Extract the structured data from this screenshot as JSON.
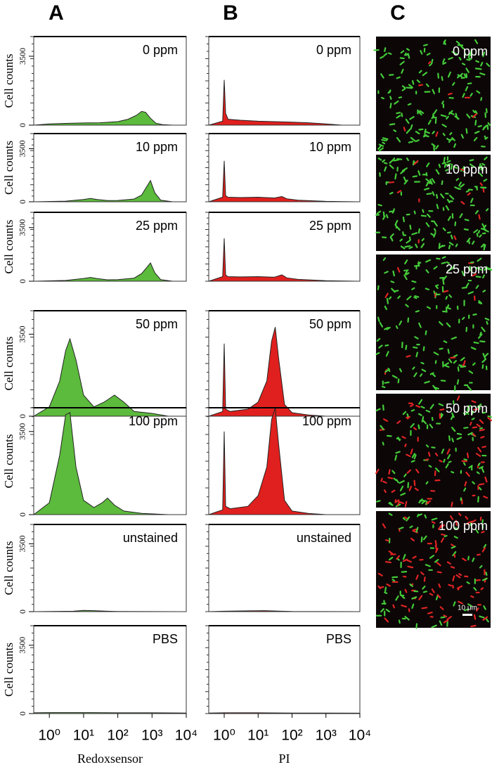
{
  "panel_labels": [
    "A",
    "B",
    "C"
  ],
  "chart_data": [
    {
      "type": "area",
      "annotation": "0 ppm",
      "ylabel": "Cell counts",
      "color": "#5cba3c",
      "xscale": "log",
      "xlim": [
        0.35,
        10000
      ],
      "ylim": [
        0,
        4500
      ],
      "yticks": [
        0,
        3500
      ],
      "x": [
        0.35,
        1,
        3,
        10,
        30,
        100,
        200,
        350,
        500,
        650,
        900,
        1300,
        2000,
        4000
      ],
      "values": [
        0,
        60,
        90,
        110,
        120,
        180,
        300,
        500,
        700,
        650,
        350,
        100,
        30,
        0
      ]
    },
    {
      "type": "area",
      "annotation": "10 ppm",
      "ylabel": "Cell counts",
      "color": "#5cba3c",
      "xscale": "log",
      "xlim": [
        0.35,
        10000
      ],
      "ylim": [
        0,
        4500
      ],
      "yticks": [
        0,
        3500
      ],
      "x": [
        0.35,
        3,
        10,
        16,
        25,
        50,
        100,
        300,
        500,
        700,
        900,
        1200,
        1800,
        4000
      ],
      "values": [
        0,
        40,
        150,
        220,
        150,
        80,
        90,
        180,
        450,
        1000,
        1400,
        600,
        100,
        0
      ]
    },
    {
      "type": "area",
      "annotation": "25 ppm",
      "ylabel": "Cell counts",
      "color": "#5cba3c",
      "xscale": "log",
      "xlim": [
        0.35,
        10000
      ],
      "ylim": [
        0,
        4500
      ],
      "yticks": [
        0,
        3500
      ],
      "x": [
        0.35,
        3,
        10,
        16,
        25,
        50,
        100,
        300,
        500,
        700,
        900,
        1200,
        1800,
        4000
      ],
      "values": [
        0,
        50,
        180,
        250,
        170,
        90,
        100,
        200,
        500,
        900,
        1200,
        550,
        100,
        0
      ]
    },
    {
      "type": "area",
      "annotation": "50 ppm",
      "ylabel": "Cell counts",
      "color": "#5cba3c",
      "xscale": "log",
      "xlim": [
        0.35,
        10000
      ],
      "ylim": [
        0,
        4500
      ],
      "yticks": [
        0,
        3500
      ],
      "x": [
        0.35,
        1,
        2,
        3,
        4,
        6,
        10,
        20,
        40,
        80,
        150,
        300,
        1000,
        3000
      ],
      "values": [
        0,
        400,
        1500,
        2800,
        3300,
        2400,
        900,
        400,
        600,
        900,
        600,
        200,
        120,
        0
      ]
    },
    {
      "type": "area",
      "annotation": "100 ppm",
      "ylabel": "Cell counts",
      "color": "#5cba3c",
      "xscale": "log",
      "xlim": [
        0.35,
        10000
      ],
      "ylim": [
        0,
        4500
      ],
      "yticks": [
        0,
        3500
      ],
      "x": [
        0.35,
        1,
        2,
        3,
        4,
        6,
        10,
        20,
        35,
        50,
        80,
        150,
        500,
        3000
      ],
      "values": [
        0,
        500,
        2500,
        4200,
        4300,
        2000,
        600,
        300,
        500,
        700,
        400,
        150,
        50,
        0
      ]
    },
    {
      "type": "area",
      "annotation": "unstained",
      "ylabel": "Cell counts",
      "color": "#5cba3c",
      "xscale": "log",
      "xlim": [
        0.35,
        10000
      ],
      "ylim": [
        0,
        4500
      ],
      "yticks": [
        0,
        3500
      ],
      "x": [
        0.35,
        5,
        10,
        20,
        50,
        100,
        1000,
        10000
      ],
      "values": [
        0,
        20,
        60,
        50,
        20,
        10,
        5,
        0
      ]
    },
    {
      "type": "area",
      "annotation": "PBS",
      "ylabel": "Cell counts",
      "color": "#5cba3c",
      "xscale": "log",
      "xlim": [
        0.35,
        10000
      ],
      "ylim": [
        0,
        4500
      ],
      "yticks": [
        0,
        3500
      ],
      "xlabel": "Redoxsensor",
      "xticks": [
        {
          "value": 1,
          "label": "10⁰"
        },
        {
          "value": 10,
          "label": "10¹"
        },
        {
          "value": 100,
          "label": "10²"
        },
        {
          "value": 1000,
          "label": "10³"
        },
        {
          "value": 10000,
          "label": "10⁴"
        }
      ],
      "x": [
        0.35,
        1,
        10,
        100,
        1000,
        10000
      ],
      "values": [
        40,
        50,
        50,
        40,
        40,
        30
      ]
    },
    {
      "type": "area",
      "annotation": "0 ppm",
      "color": "#e0201e",
      "xscale": "log",
      "xlim": [
        0.35,
        10000
      ],
      "ylim": [
        0,
        4500
      ],
      "x": [
        0.35,
        0.9,
        1,
        1.1,
        1.3,
        3,
        10,
        30,
        100,
        300,
        1000,
        3000,
        10000
      ],
      "values": [
        0,
        200,
        2300,
        600,
        300,
        250,
        200,
        180,
        150,
        120,
        60,
        0,
        0
      ]
    },
    {
      "type": "area",
      "annotation": "10 ppm",
      "color": "#e0201e",
      "xscale": "log",
      "xlim": [
        0.35,
        10000
      ],
      "ylim": [
        0,
        4500
      ],
      "x": [
        0.35,
        0.9,
        1,
        1.1,
        1.3,
        3,
        10,
        30,
        50,
        70,
        150,
        1000,
        10000
      ],
      "values": [
        0,
        300,
        2700,
        400,
        300,
        280,
        300,
        250,
        350,
        200,
        100,
        30,
        0
      ]
    },
    {
      "type": "area",
      "annotation": "25 ppm",
      "color": "#e0201e",
      "xscale": "log",
      "xlim": [
        0.35,
        10000
      ],
      "ylim": [
        0,
        4500
      ],
      "x": [
        0.35,
        0.9,
        1,
        1.1,
        1.3,
        3,
        10,
        30,
        50,
        70,
        150,
        1000,
        10000
      ],
      "values": [
        0,
        300,
        2800,
        400,
        300,
        280,
        300,
        260,
        420,
        220,
        120,
        30,
        0
      ]
    },
    {
      "type": "area",
      "annotation": "50 ppm",
      "color": "#e0201e",
      "xscale": "log",
      "xlim": [
        0.35,
        10000
      ],
      "ylim": [
        0,
        4500
      ],
      "x": [
        0.35,
        0.9,
        1,
        1.1,
        1.5,
        5,
        10,
        18,
        25,
        32,
        40,
        60,
        100,
        300,
        1000
      ],
      "values": [
        0,
        200,
        3100,
        300,
        200,
        300,
        600,
        1500,
        3200,
        3800,
        2500,
        500,
        150,
        50,
        0
      ]
    },
    {
      "type": "area",
      "annotation": "100 ppm",
      "color": "#e0201e",
      "xscale": "log",
      "xlim": [
        0.35,
        10000
      ],
      "ylim": [
        0,
        4500
      ],
      "x": [
        0.35,
        0.9,
        1,
        1.1,
        1.5,
        5,
        10,
        18,
        25,
        32,
        40,
        60,
        100,
        300,
        1000
      ],
      "values": [
        0,
        200,
        3500,
        350,
        250,
        350,
        800,
        2000,
        4000,
        4500,
        3000,
        600,
        150,
        50,
        0
      ]
    },
    {
      "type": "area",
      "annotation": "unstained",
      "color": "#e0201e",
      "xscale": "log",
      "xlim": [
        0.35,
        10000
      ],
      "ylim": [
        0,
        4500
      ],
      "x": [
        0.35,
        1,
        5,
        15,
        40,
        100,
        10000
      ],
      "values": [
        0,
        20,
        40,
        50,
        30,
        10,
        0
      ]
    },
    {
      "type": "area",
      "annotation": "PBS",
      "color": "#e0201e",
      "xscale": "log",
      "xlim": [
        0.35,
        10000
      ],
      "ylim": [
        0,
        4500
      ],
      "xlabel": "PI",
      "xticks": [
        {
          "value": 1,
          "label": "10⁰"
        },
        {
          "value": 10,
          "label": "10¹"
        },
        {
          "value": 100,
          "label": "10²"
        },
        {
          "value": 1000,
          "label": "10³"
        },
        {
          "value": 10000,
          "label": "10⁴"
        }
      ],
      "x": [
        0.35,
        1,
        10,
        100,
        1000,
        10000
      ],
      "values": [
        30,
        40,
        40,
        30,
        30,
        20
      ]
    }
  ],
  "microscopy": [
    {
      "label": "0 ppm"
    },
    {
      "label": "10 ppm"
    },
    {
      "label": "25 ppm"
    },
    {
      "label": "50 ppm"
    },
    {
      "label": "100 ppm",
      "scale_bar": "10 μm"
    }
  ]
}
